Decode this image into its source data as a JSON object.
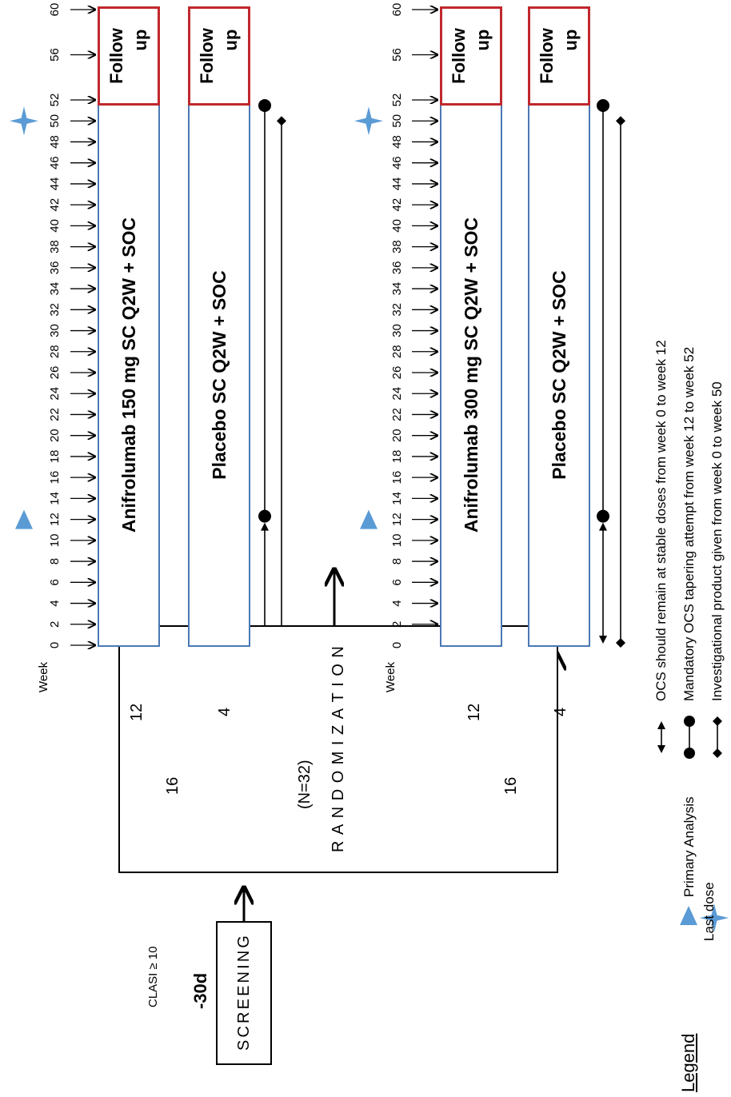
{
  "screening": {
    "label": "-30d",
    "criterion": "CLASI ≥ 10",
    "letters": [
      "S",
      "C",
      "R",
      "E",
      "E",
      "N",
      "I",
      "N",
      "G"
    ]
  },
  "randomization": {
    "letters": [
      "R",
      "A",
      "N",
      "D",
      "O",
      "M",
      "I",
      "Z",
      "A",
      "T",
      "I",
      "O",
      "N"
    ],
    "n_label": "(N=32)"
  },
  "cohorts": [
    {
      "split_total": "16",
      "split_active": "12",
      "split_placebo": "4",
      "active_arm": "Anifrolumab 150 mg SC Q2W + SOC",
      "placebo_arm": "Placebo SC Q2W + SOC",
      "follow_up": [
        "Follow",
        "up"
      ],
      "week_label": "Week"
    },
    {
      "split_total": "16",
      "split_active": "12",
      "split_placebo": "4",
      "active_arm": "Anifrolumab 300 mg SC Q2W + SOC",
      "placebo_arm": "Placebo SC Q2W + SOC",
      "follow_up": [
        "Follow",
        "up"
      ],
      "week_label": "Week"
    }
  ],
  "weeks": [
    "0",
    "2",
    "4",
    "6",
    "8",
    "10",
    "12",
    "14",
    "16",
    "18",
    "20",
    "22",
    "24",
    "26",
    "28",
    "30",
    "32",
    "34",
    "36",
    "38",
    "40",
    "42",
    "44",
    "46",
    "48",
    "50",
    "52",
    "56",
    "60"
  ],
  "legend": {
    "title": "Legend",
    "primary_analysis": "Primary Analysis",
    "last_dose": "Last dose",
    "ocs_stable": "OCS should remain at stable doses from week 0 to week 12",
    "ocs_taper": "Mandatory OCS tapering attempt from  week 12 to week 52",
    "ip_given": "Investigational product given from week 0 to week 50"
  },
  "colors": {
    "arm_border": "#4a78b5",
    "follow_up_border": "#c0282d",
    "marker_blue": "#5b9bd5"
  }
}
